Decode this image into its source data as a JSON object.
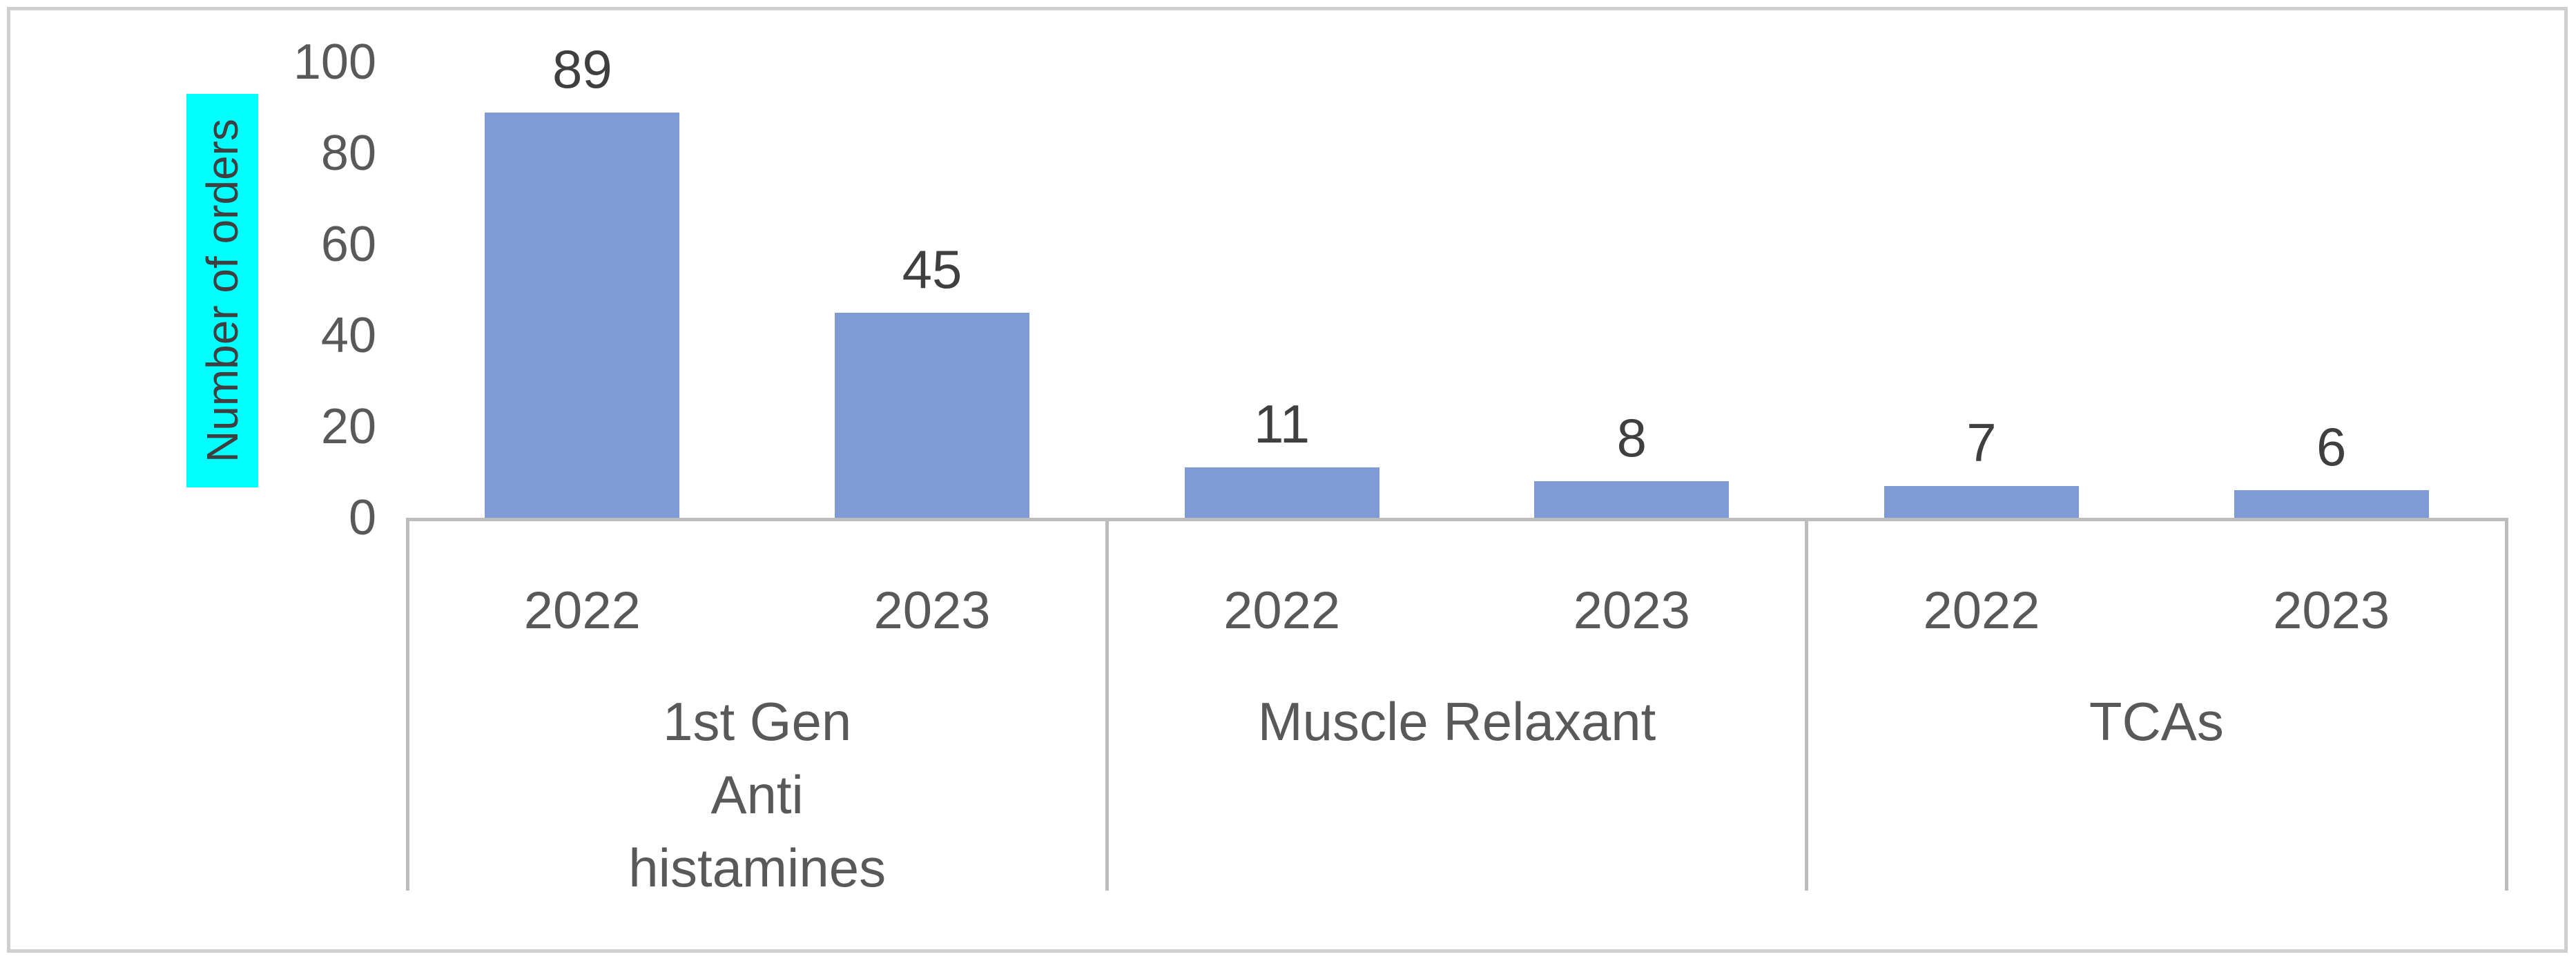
{
  "figure": {
    "background": "#ffffff",
    "frame_color": "#cfcfcf"
  },
  "chart_data": {
    "type": "bar",
    "title": "",
    "ylabel": "Number of orders",
    "xlabel": "",
    "ylim": [
      0,
      100
    ],
    "yticks": [
      100,
      80,
      60,
      40,
      20,
      0
    ],
    "grid": false,
    "legend": null,
    "legend_position": "none",
    "bar_color": "#7e9bd6",
    "axis_line_color": "#bdbdbd",
    "axis_text_color": "#595959",
    "value_label_color": "#3f3f3f",
    "ylabel_text_color": "#3f3f3f",
    "ylabel_highlight_color": "#00ffff",
    "categories": [
      "1st Gen Anti histamines",
      "Muscle Relaxant",
      "TCAs"
    ],
    "series": [
      {
        "name": "2022",
        "values": [
          89,
          11,
          7
        ]
      },
      {
        "name": "2023",
        "values": [
          45,
          8,
          6
        ]
      }
    ],
    "groups": [
      {
        "label": "1st Gen Anti histamines",
        "label_lines": [
          "1st Gen",
          "Anti",
          "histamines"
        ],
        "bars": [
          {
            "year": "2022",
            "value": 89
          },
          {
            "year": "2023",
            "value": 45
          }
        ]
      },
      {
        "label": "Muscle Relaxant",
        "label_lines": [
          "Muscle Relaxant"
        ],
        "bars": [
          {
            "year": "2022",
            "value": 11
          },
          {
            "year": "2023",
            "value": 8
          }
        ]
      },
      {
        "label": "TCAs",
        "label_lines": [
          "TCAs"
        ],
        "bars": [
          {
            "year": "2022",
            "value": 7
          },
          {
            "year": "2023",
            "value": 6
          }
        ]
      }
    ]
  }
}
